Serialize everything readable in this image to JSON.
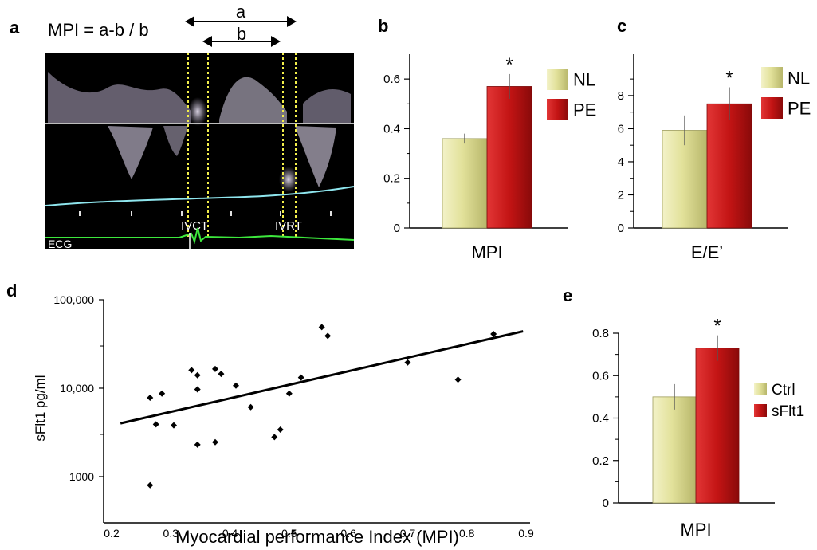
{
  "panels": {
    "a": {
      "label": "a",
      "formula": "MPI = a-b / b",
      "interval_a": "a",
      "interval_b": "b",
      "marker_ivct": "IVCT",
      "marker_ivrt": "IVRT",
      "ecg_label": "ECG"
    },
    "b": {
      "label": "b"
    },
    "c": {
      "label": "c"
    },
    "d": {
      "label": "d"
    },
    "e": {
      "label": "e"
    }
  },
  "colors": {
    "bar_yellow": "#e2e19a",
    "bar_red": "#c31414",
    "ecg_green": "#3de83d",
    "baseline_cyan": "#8fe6ee",
    "guide_yellow": "#f2ee4a"
  },
  "chart_data": [
    {
      "id": "b",
      "type": "bar",
      "categories": [
        "MPI"
      ],
      "series": [
        {
          "name": "NL",
          "values": [
            0.36
          ],
          "error": [
            0.02
          ]
        },
        {
          "name": "PE",
          "values": [
            0.57
          ],
          "error": [
            0.05
          ]
        }
      ],
      "significance": "*",
      "xlabel": "MPI",
      "ylim": [
        0,
        0.7
      ],
      "yticks": [
        0,
        0.2,
        0.4,
        0.6
      ],
      "ytick_labels": [
        "0",
        "0.2",
        "0.4",
        "0.6"
      ],
      "legend": "top-right"
    },
    {
      "id": "c",
      "type": "bar",
      "categories": [
        "E/E’"
      ],
      "series": [
        {
          "name": "NL",
          "values": [
            5.9
          ],
          "error": [
            0.9
          ]
        },
        {
          "name": "PE",
          "values": [
            7.5
          ],
          "error": [
            1.0
          ]
        }
      ],
      "significance": "*",
      "xlabel": "E/E’",
      "ylim": [
        0,
        10.5
      ],
      "yticks": [
        0,
        2,
        4,
        6,
        8
      ],
      "ytick_labels": [
        "0",
        "2",
        "4",
        "6",
        "8"
      ],
      "legend": "top-right"
    },
    {
      "id": "d",
      "type": "scatter",
      "xlabel": "Myocardial performance Index (MPI)",
      "ylabel": "sFlt1 pg/ml",
      "xlim": [
        0.2,
        0.9
      ],
      "ylim": [
        300,
        100000
      ],
      "yscale": "log",
      "xticks": [
        0.2,
        0.3,
        0.4,
        0.5,
        0.6,
        0.7,
        0.8,
        0.9
      ],
      "xtick_labels": [
        "0.2",
        "0.3",
        "0.4",
        "0.5",
        "0.6",
        "0.7",
        "0.8",
        "0.9"
      ],
      "yticks": [
        1000,
        10000,
        100000
      ],
      "ytick_labels": [
        "1000",
        "10,000",
        "100,000"
      ],
      "points": [
        {
          "x": 0.265,
          "y": 800
        },
        {
          "x": 0.265,
          "y": 7800
        },
        {
          "x": 0.275,
          "y": 3900
        },
        {
          "x": 0.285,
          "y": 8700
        },
        {
          "x": 0.305,
          "y": 3800
        },
        {
          "x": 0.335,
          "y": 16000
        },
        {
          "x": 0.345,
          "y": 14000
        },
        {
          "x": 0.345,
          "y": 9700
        },
        {
          "x": 0.345,
          "y": 2300
        },
        {
          "x": 0.375,
          "y": 16500
        },
        {
          "x": 0.385,
          "y": 14500
        },
        {
          "x": 0.375,
          "y": 2450
        },
        {
          "x": 0.41,
          "y": 10700
        },
        {
          "x": 0.435,
          "y": 6100
        },
        {
          "x": 0.475,
          "y": 2800
        },
        {
          "x": 0.485,
          "y": 3400
        },
        {
          "x": 0.5,
          "y": 8700
        },
        {
          "x": 0.52,
          "y": 13200
        },
        {
          "x": 0.555,
          "y": 49000
        },
        {
          "x": 0.565,
          "y": 39000
        },
        {
          "x": 0.7,
          "y": 19500
        },
        {
          "x": 0.785,
          "y": 12500
        },
        {
          "x": 0.845,
          "y": 41000
        }
      ],
      "fit_line": [
        {
          "x": 0.215,
          "y": 4000
        },
        {
          "x": 0.895,
          "y": 44000
        }
      ],
      "grid": false
    },
    {
      "id": "e",
      "type": "bar",
      "categories": [
        "MPI"
      ],
      "series": [
        {
          "name": "Ctrl",
          "values": [
            0.5
          ],
          "error": [
            0.06
          ]
        },
        {
          "name": "sFlt1",
          "values": [
            0.73
          ],
          "error": [
            0.06
          ]
        }
      ],
      "significance": "*",
      "xlabel": "MPI",
      "ylim": [
        0,
        0.8
      ],
      "yticks": [
        0,
        0.2,
        0.4,
        0.6,
        0.8
      ],
      "ytick_labels": [
        "0",
        "0.2",
        "0.4",
        "0.6",
        "0.8"
      ],
      "legend": "right"
    }
  ]
}
